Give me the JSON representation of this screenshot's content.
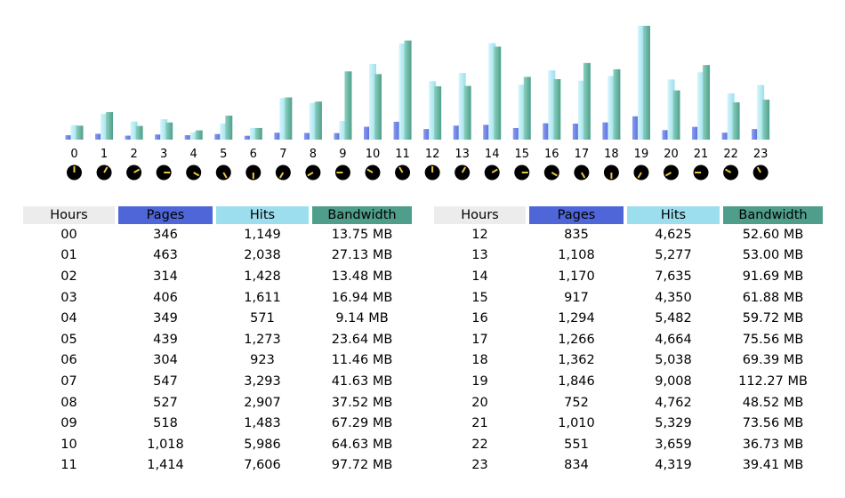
{
  "colors": {
    "pages": "#4f66d8",
    "hits": "#9cdeee",
    "bandwidth": "#4f9e8c",
    "hours_header": "#ececec",
    "clock_face": "#000000",
    "clock_hand": "#e8c840"
  },
  "table": {
    "headers": {
      "hours": "Hours",
      "pages": "Pages",
      "hits": "Hits",
      "bandwidth": "Bandwidth"
    },
    "left_rows": [
      {
        "hour": "00",
        "pages": "346",
        "hits": "1,149",
        "bandwidth": "13.75 MB"
      },
      {
        "hour": "01",
        "pages": "463",
        "hits": "2,038",
        "bandwidth": "27.13 MB"
      },
      {
        "hour": "02",
        "pages": "314",
        "hits": "1,428",
        "bandwidth": "13.48 MB"
      },
      {
        "hour": "03",
        "pages": "406",
        "hits": "1,611",
        "bandwidth": "16.94 MB"
      },
      {
        "hour": "04",
        "pages": "349",
        "hits": "571",
        "bandwidth": "9.14 MB"
      },
      {
        "hour": "05",
        "pages": "439",
        "hits": "1,273",
        "bandwidth": "23.64 MB"
      },
      {
        "hour": "06",
        "pages": "304",
        "hits": "923",
        "bandwidth": "11.46 MB"
      },
      {
        "hour": "07",
        "pages": "547",
        "hits": "3,293",
        "bandwidth": "41.63 MB"
      },
      {
        "hour": "08",
        "pages": "527",
        "hits": "2,907",
        "bandwidth": "37.52 MB"
      },
      {
        "hour": "09",
        "pages": "518",
        "hits": "1,483",
        "bandwidth": "67.29 MB"
      },
      {
        "hour": "10",
        "pages": "1,018",
        "hits": "5,986",
        "bandwidth": "64.63 MB"
      },
      {
        "hour": "11",
        "pages": "1,414",
        "hits": "7,606",
        "bandwidth": "97.72 MB"
      }
    ],
    "right_rows": [
      {
        "hour": "12",
        "pages": "835",
        "hits": "4,625",
        "bandwidth": "52.60 MB"
      },
      {
        "hour": "13",
        "pages": "1,108",
        "hits": "5,277",
        "bandwidth": "53.00 MB"
      },
      {
        "hour": "14",
        "pages": "1,170",
        "hits": "7,635",
        "bandwidth": "91.69 MB"
      },
      {
        "hour": "15",
        "pages": "917",
        "hits": "4,350",
        "bandwidth": "61.88 MB"
      },
      {
        "hour": "16",
        "pages": "1,294",
        "hits": "5,482",
        "bandwidth": "59.72 MB"
      },
      {
        "hour": "17",
        "pages": "1,266",
        "hits": "4,664",
        "bandwidth": "75.56 MB"
      },
      {
        "hour": "18",
        "pages": "1,362",
        "hits": "5,038",
        "bandwidth": "69.39 MB"
      },
      {
        "hour": "19",
        "pages": "1,846",
        "hits": "9,008",
        "bandwidth": "112.27 MB"
      },
      {
        "hour": "20",
        "pages": "752",
        "hits": "4,762",
        "bandwidth": "48.52 MB"
      },
      {
        "hour": "21",
        "pages": "1,010",
        "hits": "5,329",
        "bandwidth": "73.56 MB"
      },
      {
        "hour": "22",
        "pages": "551",
        "hits": "3,659",
        "bandwidth": "36.73 MB"
      },
      {
        "hour": "23",
        "pages": "834",
        "hits": "4,319",
        "bandwidth": "39.41 MB"
      }
    ]
  },
  "chart_data": {
    "type": "bar",
    "categories": [
      "0",
      "1",
      "2",
      "3",
      "4",
      "5",
      "6",
      "7",
      "8",
      "9",
      "10",
      "11",
      "12",
      "13",
      "14",
      "15",
      "16",
      "17",
      "18",
      "19",
      "20",
      "21",
      "22",
      "23"
    ],
    "series": [
      {
        "key": "pages",
        "values": [
          346,
          463,
          314,
          406,
          349,
          439,
          304,
          547,
          527,
          518,
          1018,
          1414,
          835,
          1108,
          1170,
          917,
          1294,
          1266,
          1362,
          1846,
          752,
          1010,
          551,
          834
        ]
      },
      {
        "key": "hits",
        "values": [
          1149,
          2038,
          1428,
          1611,
          571,
          1273,
          923,
          3293,
          2907,
          1483,
          5986,
          7606,
          4625,
          5277,
          7635,
          4350,
          5482,
          4664,
          5038,
          9008,
          4762,
          5329,
          3659,
          4319
        ]
      },
      {
        "key": "bandwidth",
        "values": [
          13.75,
          27.13,
          13.48,
          16.94,
          9.14,
          23.64,
          11.46,
          41.63,
          37.52,
          67.29,
          64.63,
          97.72,
          52.6,
          53.0,
          91.69,
          61.88,
          59.72,
          75.56,
          69.39,
          112.27,
          48.52,
          73.56,
          36.73,
          39.41
        ]
      }
    ],
    "grid": false,
    "legend": "none",
    "hour_clock_icons": true
  }
}
